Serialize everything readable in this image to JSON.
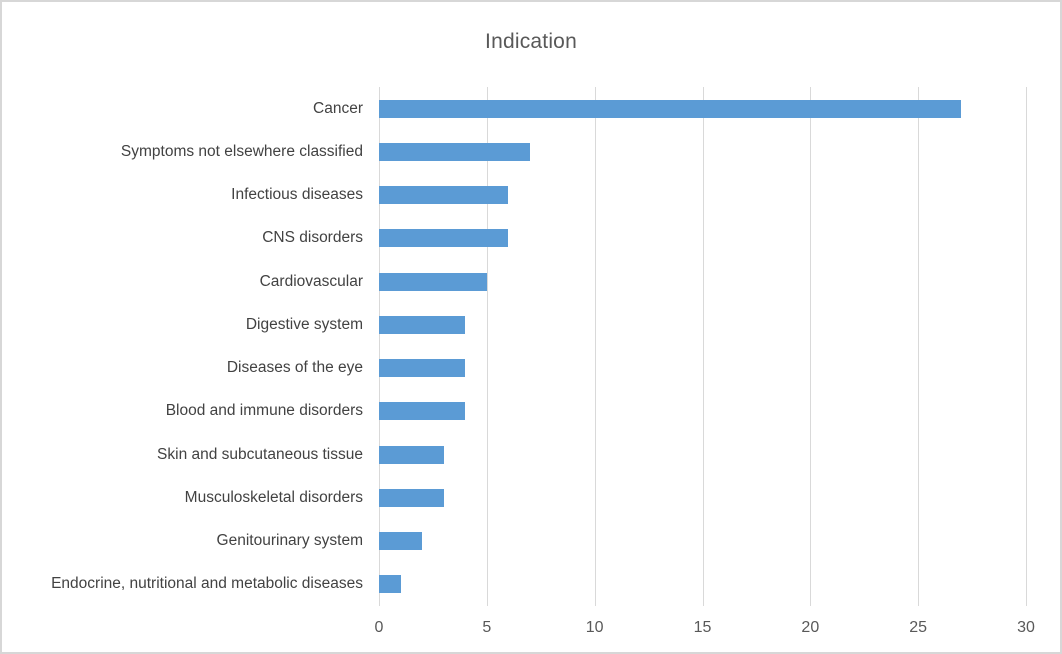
{
  "chart_data": {
    "type": "bar",
    "orientation": "horizontal",
    "title": "Indication",
    "categories": [
      "Cancer",
      "Symptoms not elsewhere classified",
      "Infectious diseases",
      "CNS disorders",
      "Cardiovascular",
      "Digestive system",
      "Diseases of the eye",
      "Blood and immune disorders",
      "Skin and subcutaneous tissue",
      "Musculoskeletal disorders",
      "Genitourinary system",
      "Endocrine, nutritional and metabolic diseases"
    ],
    "values": [
      27,
      7,
      6,
      6,
      5,
      4,
      4,
      4,
      3,
      3,
      2,
      1
    ],
    "xlabel": "",
    "ylabel": "",
    "xlim": [
      0,
      30
    ],
    "x_ticks": [
      0,
      5,
      10,
      15,
      20,
      25,
      30
    ],
    "grid": true,
    "legend": false,
    "colors": {
      "bar": "#5B9BD5",
      "gridline": "#D9D9D9",
      "title_text": "#595959",
      "label_text": "#424242",
      "tick_text": "#595959",
      "chart_border": "#D7D7D7",
      "background": "#FFFFFF"
    }
  }
}
